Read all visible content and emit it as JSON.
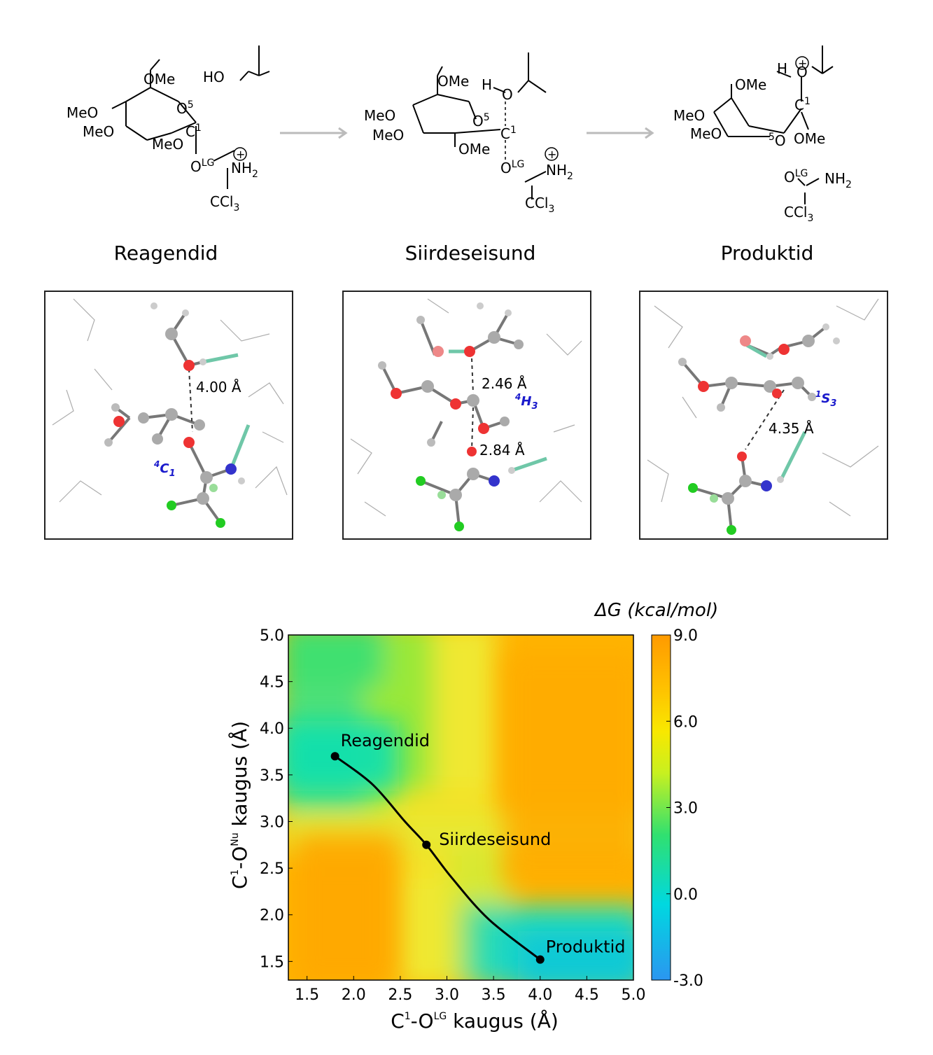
{
  "stages": [
    {
      "key": "reactants",
      "title": "Reagendid"
    },
    {
      "key": "ts",
      "title": "Siirdeseisund"
    },
    {
      "key": "products",
      "title": "Produktid"
    }
  ],
  "schemes": {
    "reactants": {
      "ome_top": "OMe",
      "o5": "O",
      "o5_sup": "5",
      "meo1": "MeO",
      "meo2": "MeO",
      "meo3": "MeO",
      "c1": "C",
      "c1_sup": "1",
      "olg": "O",
      "olg_sup": "LG",
      "nh2": "NH",
      "nh2_sub": "2",
      "ccl3": "CCl",
      "ccl3_sub": "3",
      "ho": "HO",
      "plus": "+"
    },
    "ts": {
      "ome_top": "OMe",
      "o5": "O",
      "o5_sup": "5",
      "meo1": "MeO",
      "meo2": "MeO",
      "ome_low": "OMe",
      "c1": "C",
      "c1_sup": "1",
      "olg": "O",
      "olg_sup": "LG",
      "nh2": "NH",
      "nh2_sub": "2",
      "ccl3": "CCl",
      "ccl3_sub": "3",
      "h": "H",
      "o_nu": "O",
      "plus": "+"
    },
    "products": {
      "ome_top": "OMe",
      "meo1": "MeO",
      "meo2": "MeO",
      "o5": "O",
      "o5_sup": "5",
      "ome_low": "OMe",
      "c1": "C",
      "c1_sup": "1",
      "h": "H",
      "o_nu": "O",
      "plus": "+",
      "olg": "O",
      "olg_sup": "LG",
      "nh2": "NH",
      "nh2_sub": "2",
      "ccl3": "CCl",
      "ccl3_sub": "3"
    }
  },
  "structures": {
    "reactants": {
      "distance": "4.00 Å",
      "conformation": "C",
      "conf_sup": "4",
      "conf_sub": "1"
    },
    "ts": {
      "distance_top": "2.46 Å",
      "distance_bottom": "2.84 Å",
      "conformation": "H",
      "conf_sup": "4",
      "conf_sub": "3"
    },
    "products": {
      "distance": "4.35 Å",
      "conformation": "S",
      "conf_sup": "1",
      "conf_sub": "3"
    }
  },
  "chart_data": {
    "type": "heatmap",
    "colorbar_title": "ΔG (kcal/mol)",
    "colorbar_ticks": [
      "9.0",
      "6.0",
      "3.0",
      "0.0",
      "-3.0"
    ],
    "colorbar_range": [
      -3.0,
      9.0
    ],
    "x_label_parts": {
      "c": "C",
      "c_sup": "1",
      "o": "-O",
      "o_sup": "LG",
      "rest": " kaugus (Å)"
    },
    "y_label_parts": {
      "c": "C",
      "c_sup": "1",
      "o": "-O",
      "o_sup": "Nu",
      "rest": " kaugus (Å)"
    },
    "xlim": [
      1.3,
      5.0
    ],
    "ylim": [
      1.3,
      5.0
    ],
    "x_ticks": [
      "1.5",
      "2.0",
      "2.5",
      "3.0",
      "3.5",
      "4.0",
      "4.5",
      "5.0"
    ],
    "y_ticks": [
      "5.0",
      "4.5",
      "4.0",
      "3.5",
      "3.0",
      "2.5",
      "2.0",
      "1.5"
    ],
    "points": [
      {
        "label": "Reagendid",
        "x": 1.8,
        "y": 3.7
      },
      {
        "label": "Siirdeseisund",
        "x": 2.78,
        "y": 2.75
      },
      {
        "label": "Produktid",
        "x": 4.0,
        "y": 1.52
      }
    ],
    "path": [
      [
        1.8,
        3.7
      ],
      [
        2.2,
        3.4
      ],
      [
        2.55,
        3.0
      ],
      [
        2.78,
        2.75
      ],
      [
        3.05,
        2.4
      ],
      [
        3.45,
        1.95
      ],
      [
        4.0,
        1.52
      ]
    ],
    "colors": {
      "min": "#2b96f0",
      "low": "#00e6cc",
      "mid": "#e8f028",
      "high": "#ffa500"
    }
  }
}
